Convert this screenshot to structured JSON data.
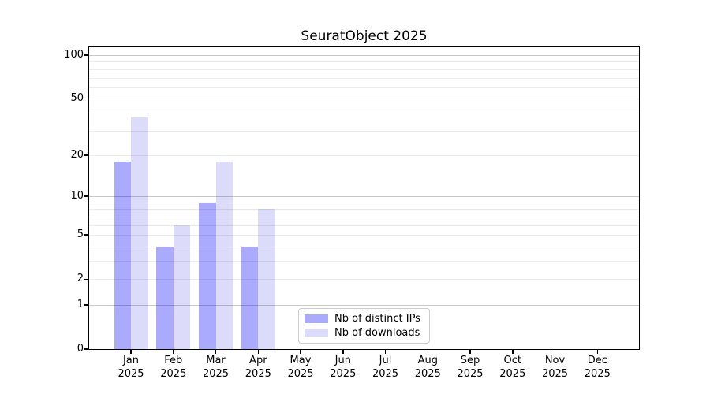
{
  "chart_data": {
    "type": "bar",
    "title": "SeuratObject 2025",
    "categories": [
      "Jan",
      "Feb",
      "Mar",
      "Apr",
      "May",
      "Jun",
      "Jul",
      "Aug",
      "Sep",
      "Oct",
      "Nov",
      "Dec"
    ],
    "year": "2025",
    "series": [
      {
        "name": "Nb of distinct IPs",
        "color": "#aaaaff",
        "values": [
          18,
          4,
          9,
          4,
          0,
          0,
          0,
          0,
          0,
          0,
          0,
          0
        ]
      },
      {
        "name": "Nb of downloads",
        "color": "#dcdcfa",
        "values": [
          37,
          6,
          18,
          8,
          0,
          0,
          0,
          0,
          0,
          0,
          0,
          0
        ]
      }
    ],
    "y_axis": {
      "scale": "log1p",
      "max": 100,
      "tick_values": [
        0,
        1,
        2,
        5,
        10,
        20,
        50,
        100
      ]
    },
    "gridlines": {
      "major_values": [
        1,
        10,
        100
      ],
      "minor_values": [
        2,
        3,
        4,
        5,
        6,
        7,
        8,
        9,
        20,
        30,
        40,
        50,
        60,
        70,
        80,
        90
      ]
    },
    "legend": {
      "position": "inside-bottom-center",
      "border_color": "#cccccc"
    },
    "xlabel": "",
    "ylabel": "",
    "ylim": [
      0,
      100
    ]
  }
}
